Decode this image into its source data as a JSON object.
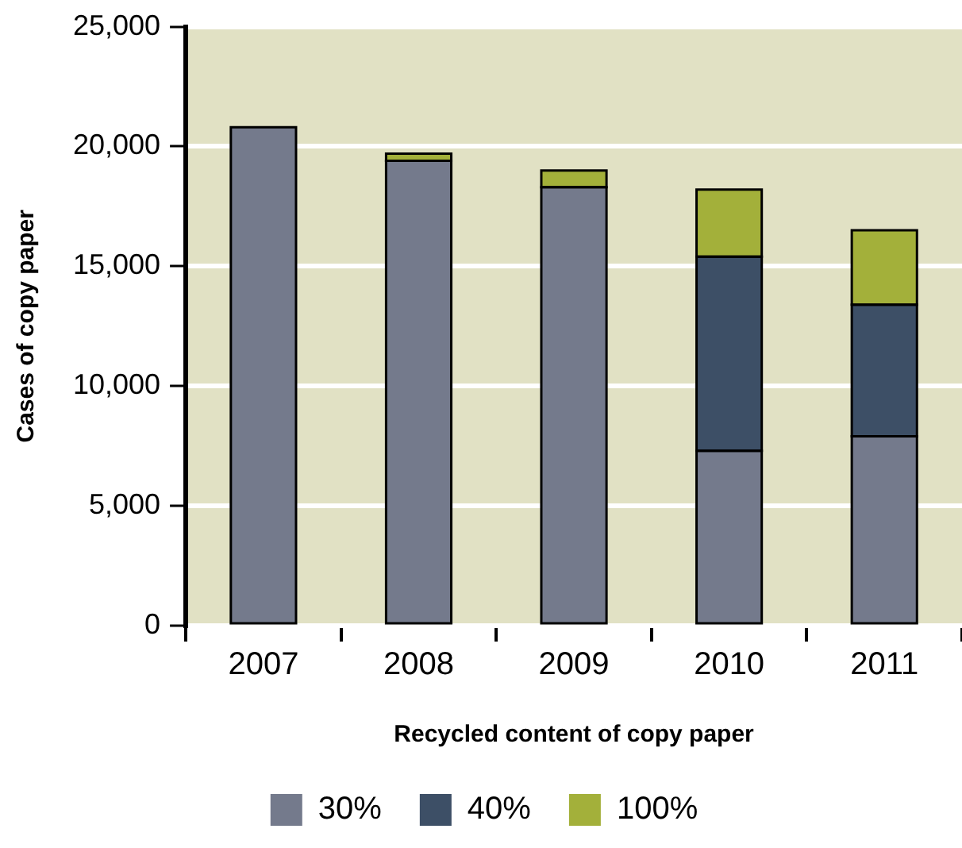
{
  "chart_data": {
    "type": "bar",
    "xlabel": "Recycled content of copy paper",
    "ylabel": "Cases of copy paper",
    "categories": [
      "2007",
      "2008",
      "2009",
      "2010",
      "2011"
    ],
    "stacked": true,
    "series": [
      {
        "name": "30%",
        "color": "#747a8c",
        "values": [
          20800,
          19400,
          18300,
          7300,
          7900
        ]
      },
      {
        "name": "40%",
        "color": "#3d4f66",
        "values": [
          0,
          0,
          0,
          8100,
          5500
        ]
      },
      {
        "name": "100%",
        "color": "#a3b03a",
        "values": [
          0,
          300,
          700,
          2800,
          3100
        ]
      }
    ],
    "ylim": [
      0,
      25000
    ],
    "yticks": [
      0,
      {
        "value": 5000,
        "label": "5,000"
      },
      {
        "value": 10000,
        "label": "10,000"
      },
      {
        "value": 15000,
        "label": "15,000"
      },
      {
        "value": 20000,
        "label": "20,000"
      },
      {
        "value": 25000,
        "label": "25,000"
      }
    ],
    "grid": "y",
    "legend": "bottom"
  }
}
